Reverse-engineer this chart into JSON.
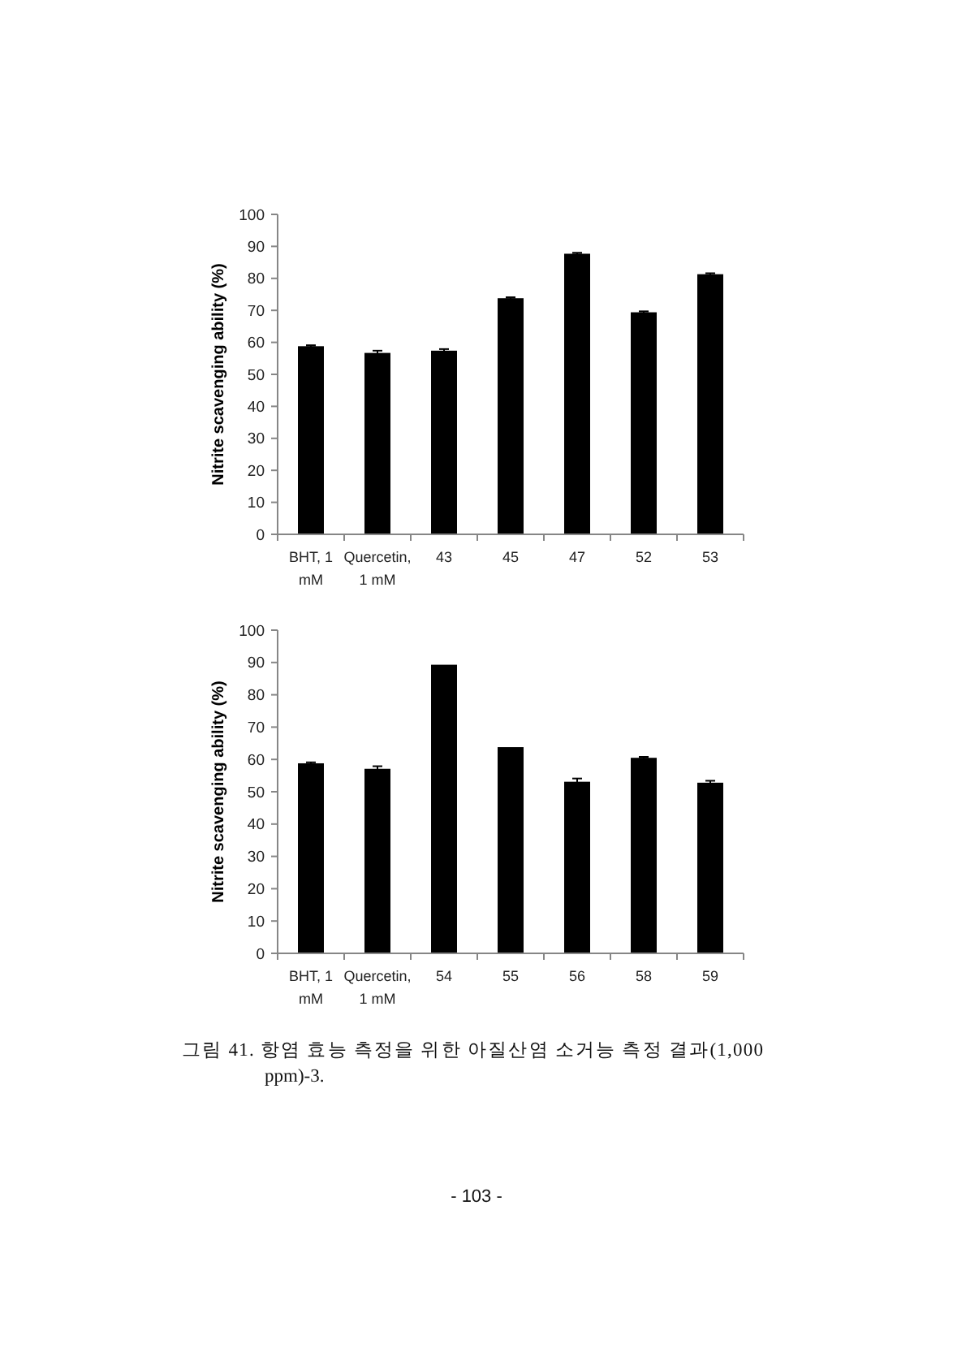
{
  "chart_data": [
    {
      "type": "bar",
      "ylabel": "Nitrite scavenging ability (%)",
      "categories": [
        "BHT, 1 mM",
        "Quercetin, 1 mM",
        "43",
        "45",
        "47",
        "52",
        "53"
      ],
      "values": [
        58.8,
        56.7,
        57.4,
        73.8,
        87.7,
        69.4,
        81.3
      ],
      "errors": [
        0.3,
        0.7,
        0.5,
        0.3,
        0.3,
        0.3,
        0.3
      ],
      "color": "#000000",
      "ylim": [
        0,
        100
      ],
      "yticks": [
        0,
        10,
        20,
        30,
        40,
        50,
        60,
        70,
        80,
        90,
        100
      ]
    },
    {
      "type": "bar",
      "ylabel": "Nitrite scavenging ability (%)",
      "categories": [
        "BHT, 1 mM",
        "Quercetin, 1 mM",
        "54",
        "55",
        "56",
        "58",
        "59"
      ],
      "values": [
        58.8,
        57.1,
        89.3,
        63.8,
        53.1,
        60.5,
        52.8
      ],
      "errors": [
        0.3,
        0.8,
        null,
        null,
        1.0,
        0.3,
        0.6
      ],
      "color": "#000000",
      "ylim": [
        0,
        100
      ],
      "yticks": [
        0,
        10,
        20,
        30,
        40,
        50,
        60,
        70,
        80,
        90,
        100
      ],
      "annotations": [
        "그림 41. 항염 효능 측정을 위한 아질산염 소거능 측정 결과(1,000 ppm)-3.",
        "- 103 -"
      ]
    }
  ]
}
